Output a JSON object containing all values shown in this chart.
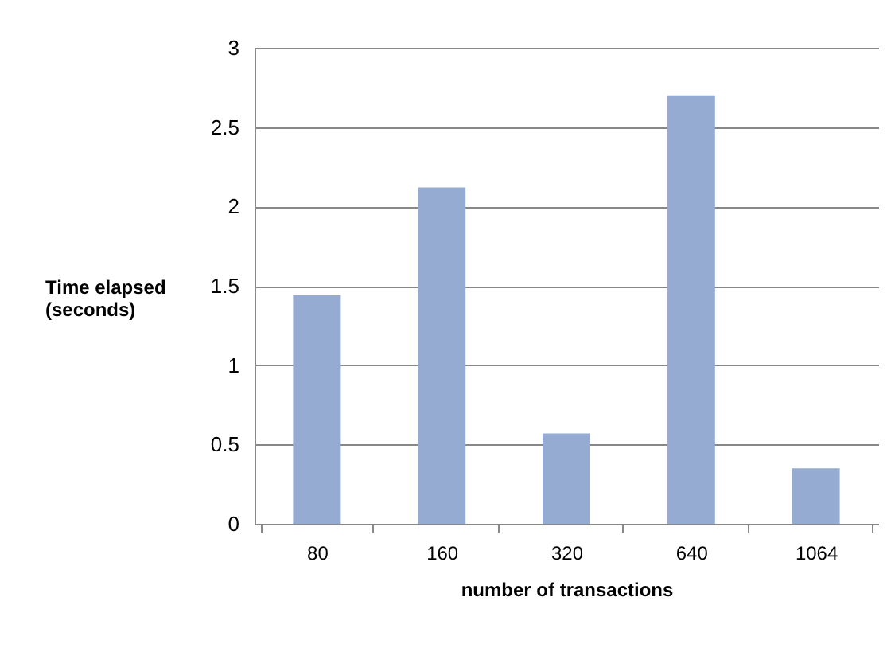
{
  "chart_data": {
    "type": "bar",
    "xlabel": "number of transactions",
    "ylabel": "Time elapsed (seconds)",
    "categories": [
      "80",
      "160",
      "320",
      "640",
      "1064"
    ],
    "values": [
      1.44,
      2.12,
      0.57,
      2.7,
      0.35
    ],
    "color": "#95abd1",
    "ylim": [
      0,
      3
    ],
    "yticks": [
      0,
      0.5,
      1,
      1.5,
      2,
      2.5,
      3
    ],
    "grid": "y"
  }
}
